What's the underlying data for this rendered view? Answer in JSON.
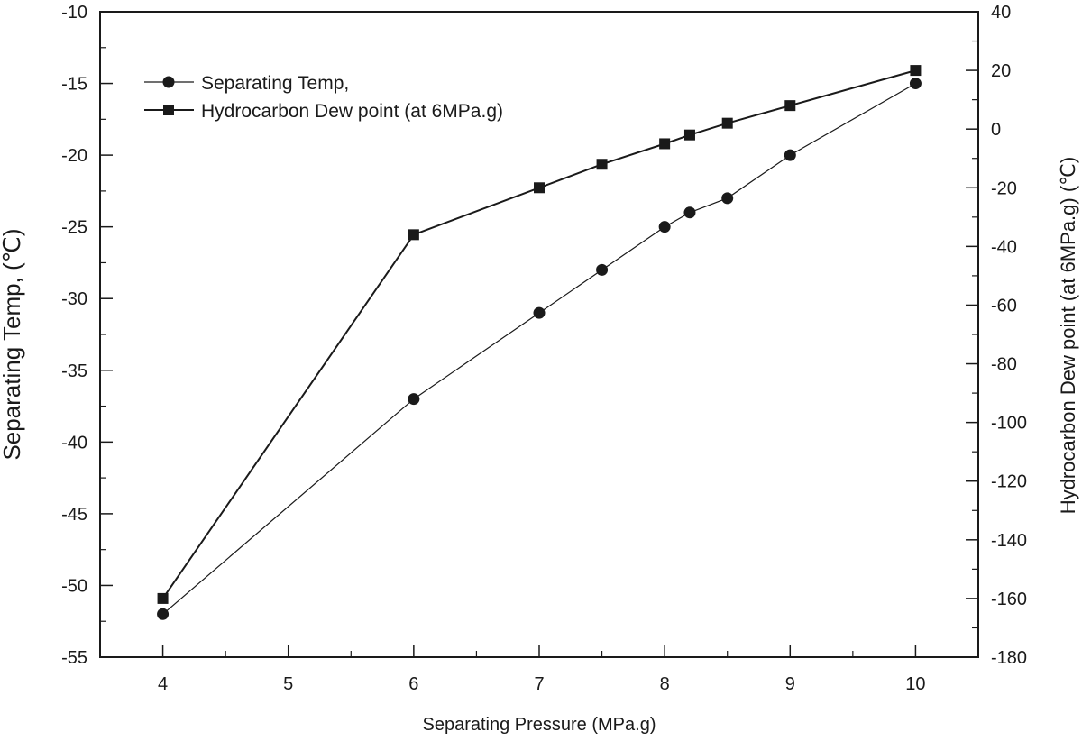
{
  "chart_data": {
    "type": "line",
    "title": "",
    "xlabel": "Separating Pressure (MPa.g)",
    "ylabel_left": "Separating Temp, (℃)",
    "ylabel_right": "Hydrocarbon Dew point (at 6MPa.g) (℃)",
    "xlim": [
      3.5,
      10.5
    ],
    "ylim_left": [
      -55,
      -10
    ],
    "ylim_right": [
      -180,
      40
    ],
    "x_ticks": [
      4,
      5,
      6,
      7,
      8,
      9,
      10
    ],
    "x_tick_labels": [
      "4",
      "5",
      "6",
      "7",
      "8",
      "9",
      "10"
    ],
    "y_left_ticks": [
      -10,
      -15,
      -20,
      -25,
      -30,
      -35,
      -40,
      -45,
      -50,
      -55
    ],
    "y_left_tick_labels": [
      "-10",
      "-15",
      "-20",
      "-25",
      "-30",
      "-35",
      "-40",
      "-45",
      "-50",
      "-55"
    ],
    "y_right_ticks": [
      40,
      20,
      0,
      -20,
      -40,
      -60,
      -80,
      -100,
      -120,
      -140,
      -160,
      -180
    ],
    "y_right_tick_labels": [
      "40",
      "20",
      "0",
      "-20",
      "-40",
      "-60",
      "-80",
      "-100",
      "-120",
      "-140",
      "-160",
      "-180"
    ],
    "grid": false,
    "legend_position": "top-left",
    "series": [
      {
        "name": "Separating Temp,",
        "axis": "left",
        "marker": "circle",
        "x": [
          4,
          6,
          7,
          7.5,
          8,
          8.2,
          8.5,
          9,
          10
        ],
        "values": [
          -52,
          -37,
          -31,
          -28,
          -25,
          -24,
          -23,
          -20,
          -15
        ]
      },
      {
        "name": "Hydrocarbon Dew point (at 6MPa.g)",
        "axis": "right",
        "marker": "square",
        "x": [
          4,
          6,
          7,
          7.5,
          8,
          8.2,
          8.5,
          9,
          10
        ],
        "values": [
          -160,
          -36,
          -20,
          -12,
          -5,
          -2,
          2,
          8,
          20
        ]
      }
    ],
    "colors": {
      "line": "#1a1a1a",
      "marker": "#1a1a1a",
      "axis": "#1a1a1a"
    }
  }
}
